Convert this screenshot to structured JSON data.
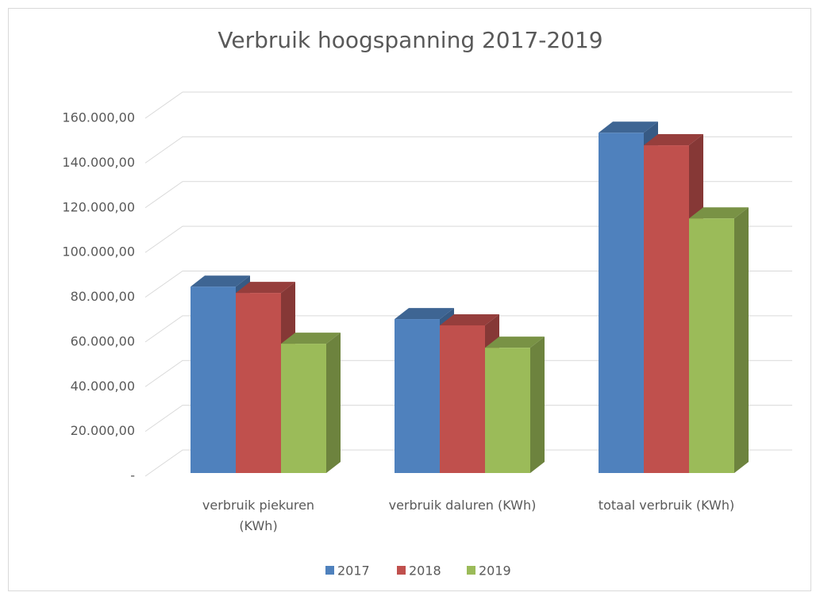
{
  "chart_data": {
    "type": "bar3d",
    "title": "Verbruik hoogspanning 2017-2019",
    "categories": [
      "verbruik piekuren (KWh)",
      "verbruik daluren (KWh)",
      "totaal verbruik (KWh)"
    ],
    "series": [
      {
        "name": "2017",
        "color": "#4f81bd",
        "values": [
          83300,
          68800,
          152100
        ]
      },
      {
        "name": "2018",
        "color": "#c0504d",
        "values": [
          80500,
          66000,
          146500
        ]
      },
      {
        "name": "2019",
        "color": "#9bbb59",
        "values": [
          57800,
          56000,
          113800
        ]
      }
    ],
    "ylim": [
      0,
      160000
    ],
    "yticks": [
      {
        "value": 0,
        "label": "-"
      },
      {
        "value": 20000,
        "label": "20.000,00"
      },
      {
        "value": 40000,
        "label": "40.000,00"
      },
      {
        "value": 60000,
        "label": "60.000,00"
      },
      {
        "value": 80000,
        "label": "80.000,00"
      },
      {
        "value": 100000,
        "label": "100.000,00"
      },
      {
        "value": 120000,
        "label": "120.000,00"
      },
      {
        "value": 140000,
        "label": "140.000,00"
      },
      {
        "value": 160000,
        "label": "160.000,00"
      }
    ],
    "grid": true,
    "legend": "bottom"
  }
}
